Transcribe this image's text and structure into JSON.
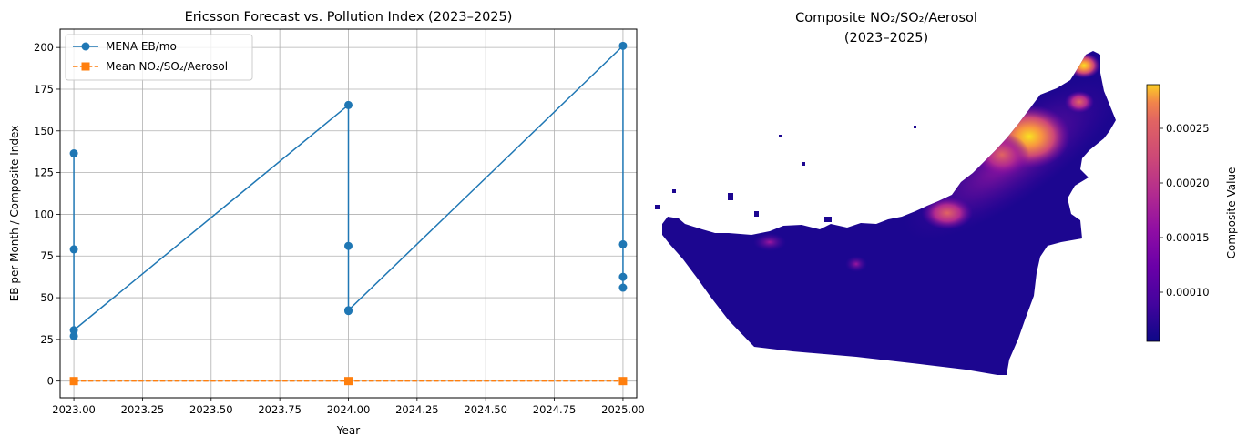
{
  "chart_data": [
    {
      "type": "line",
      "title": "Ericsson Forecast vs. Pollution Index (2023–2025)",
      "xlabel": "Year",
      "ylabel": "EB per Month / Composite Index",
      "xlim": [
        2022.95,
        2025.05
      ],
      "ylim": [
        -10,
        211
      ],
      "xticks": [
        2023.0,
        2023.25,
        2023.5,
        2023.75,
        2024.0,
        2024.25,
        2024.5,
        2024.75,
        2025.0
      ],
      "xtick_labels": [
        "2023.00",
        "2023.25",
        "2023.50",
        "2023.75",
        "2024.00",
        "2024.25",
        "2024.50",
        "2024.75",
        "2025.00"
      ],
      "yticks": [
        0,
        25,
        50,
        75,
        100,
        125,
        150,
        175,
        200
      ],
      "ytick_labels": [
        "0",
        "25",
        "50",
        "75",
        "100",
        "125",
        "150",
        "175",
        "200"
      ],
      "grid": true,
      "legend_position": "top-left",
      "series": [
        {
          "name": "MENA EB/mo",
          "color": "#1f77b4",
          "linestyle": "solid",
          "marker": "circle",
          "x": [
            2023,
            2023,
            2023,
            2023,
            2024,
            2024,
            2024,
            2024,
            2025,
            2025,
            2025,
            2025
          ],
          "y": [
            136.5,
            79,
            27,
            30.5,
            165.5,
            81,
            42,
            42.5,
            201,
            82,
            62.5,
            56
          ]
        },
        {
          "name": "Mean NO₂/SO₂/Aerosol",
          "color": "#ff7f0e",
          "linestyle": "dashed",
          "marker": "square",
          "x": [
            2023,
            2024,
            2025
          ],
          "y": [
            0.0001,
            0.0001,
            0.0001
          ]
        }
      ]
    },
    {
      "type": "heatmap",
      "title": "Composite NO₂/SO₂/Aerosol",
      "subtitle": "(2023–2025)",
      "colormap": "plasma",
      "colorbar_label": "Composite Value",
      "colorbar_range": [
        5.5e-05,
        0.00029
      ],
      "colorbar_ticks": [
        0.0001,
        0.00015,
        0.0002,
        0.00025
      ],
      "colorbar_tick_labels": [
        "0.00010",
        "0.00015",
        "0.00020",
        "0.00025"
      ]
    }
  ]
}
